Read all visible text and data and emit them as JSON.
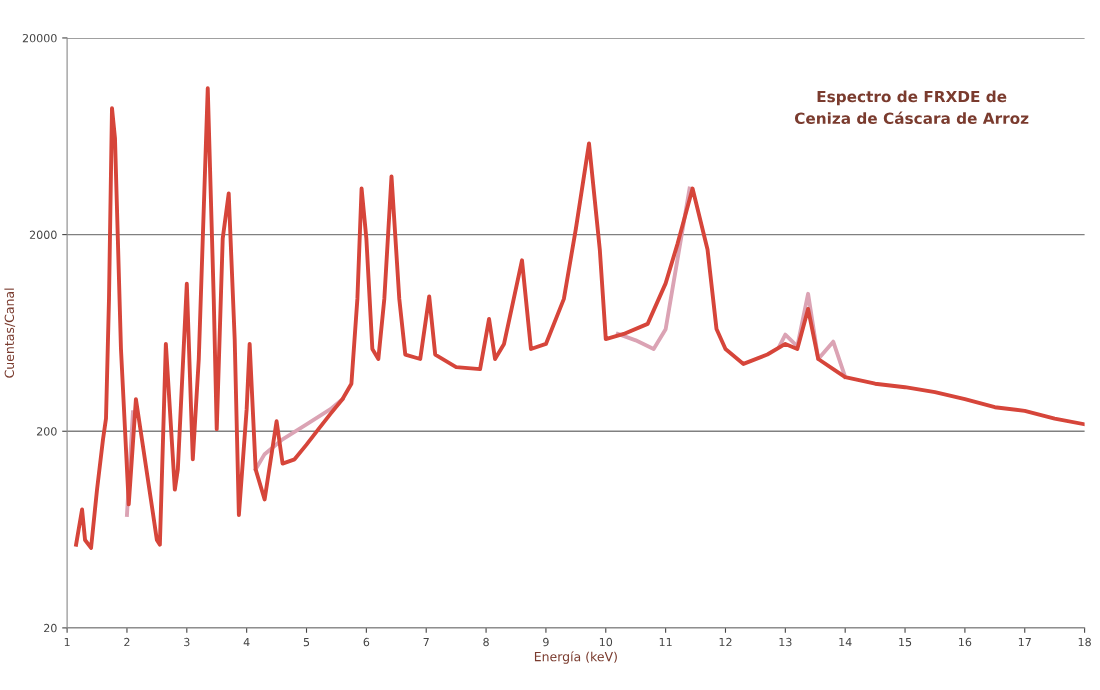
{
  "chart_data": {
    "type": "line",
    "title": "Espectro de FRXDE de\nCeniza de Cáscara de Arroz",
    "xlabel": "Energía (keV)",
    "ylabel": "Cuentas/Canal",
    "log": "y",
    "grid": "y",
    "xlim": [
      1,
      18
    ],
    "ylim": [
      20,
      20000
    ],
    "xticks": [
      1,
      2,
      3,
      4,
      5,
      6,
      7,
      8,
      9,
      10,
      11,
      12,
      13,
      14,
      15,
      16,
      17,
      18
    ],
    "yticks": [
      20,
      200,
      2000,
      20000
    ],
    "line_style": "solid",
    "marker": "none",
    "series": [
      {
        "color": "#dba3b4",
        "x": [
          2.0,
          2.1,
          null,
          4.15,
          4.3,
          4.6,
          5.0,
          5.4,
          5.6,
          null,
          10.2,
          10.5,
          10.8,
          11.0,
          11.2,
          11.4,
          null,
          12.9,
          13.0,
          13.2,
          13.38,
          13.55,
          13.8,
          14.0
        ],
        "values": [
          75,
          250,
          null,
          128,
          153,
          182,
          217,
          259,
          291,
          null,
          625,
          580,
          524,
          660,
          1510,
          3430,
          null,
          540,
          620,
          540,
          1000,
          466,
          571,
          377
        ]
      },
      {
        "color": "#d6453a",
        "x": [
          1.15,
          1.25,
          1.3,
          1.4,
          1.5,
          1.6,
          1.65,
          1.7,
          1.75,
          1.8,
          1.9,
          2.03,
          2.15,
          2.25,
          2.4,
          2.5,
          2.55,
          2.65,
          2.8,
          2.85,
          3.0,
          3.1,
          3.2,
          3.35,
          3.45,
          3.5,
          3.6,
          3.7,
          3.8,
          3.87,
          4.0,
          4.05,
          4.15,
          4.3,
          4.5,
          4.6,
          4.8,
          5.0,
          5.2,
          5.4,
          5.6,
          5.75,
          5.85,
          5.92,
          6.0,
          6.1,
          6.2,
          6.3,
          6.42,
          6.55,
          6.65,
          6.9,
          7.05,
          7.15,
          7.5,
          7.9,
          8.05,
          8.15,
          8.3,
          8.6,
          8.75,
          9.0,
          9.3,
          9.5,
          9.72,
          9.9,
          10.0,
          10.3,
          10.7,
          11.0,
          11.2,
          11.45,
          11.7,
          11.85,
          12.0,
          12.3,
          12.7,
          13.0,
          13.2,
          13.38,
          13.55,
          13.8,
          14.0,
          14.5,
          15.0,
          15.5,
          16.0,
          16.5,
          17.0,
          17.5,
          18.0
        ],
        "values": [
          53,
          80,
          56,
          51,
          101,
          182,
          232,
          942,
          8790,
          6180,
          524,
          85,
          291,
          182,
          90,
          56,
          53,
          556,
          101,
          128,
          1125,
          144,
          466,
          11100,
          942,
          205,
          1910,
          3240,
          589,
          75,
          259,
          556,
          128,
          90,
          225,
          137,
          144,
          171,
          205,
          245,
          291,
          349,
          942,
          3430,
          1910,
          524,
          466,
          942,
          3950,
          942,
          491,
          466,
          970,
          491,
          424,
          414,
          745,
          466,
          556,
          1480,
          524,
          556,
          942,
          2140,
          5820,
          1680,
          589,
          625,
          703,
          1130,
          1800,
          3430,
          1680,
          662,
          524,
          440,
          491,
          556,
          524,
          838,
          466,
          414,
          377,
          349,
          335,
          316,
          291,
          265,
          254,
          232,
          217
        ]
      }
    ]
  }
}
